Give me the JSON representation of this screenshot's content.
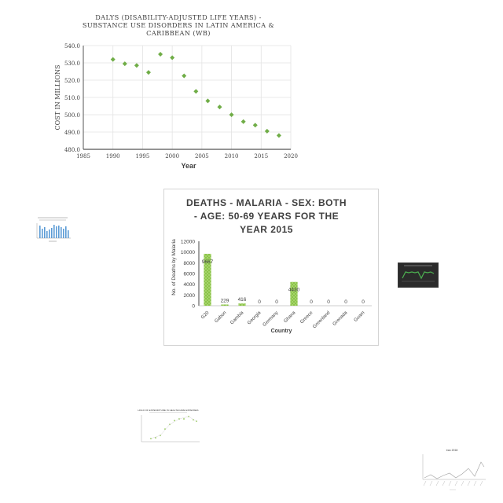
{
  "chart_data": [
    {
      "type": "scatter",
      "title": "DALYS (DISABILITY-ADJUSTED LIFE YEARS) - SUBSTANCE USE DISORDERS IN LATIN AMERICA & CARIBBEAN (WB)",
      "title_lines": [
        "DALYS (DISABILITY-ADJUSTED LIFE YEARS) -",
        "SUBSTANCE USE DISORDERS IN LATIN AMERICA &",
        "CARIBBEAN (WB)"
      ],
      "xlabel": "Year",
      "ylabel": "COST IN MILLIONS",
      "xlim": [
        1985,
        2020
      ],
      "ylim": [
        480,
        540
      ],
      "x_ticks": [
        "1985",
        "1990",
        "1995",
        "2000",
        "2005",
        "2010",
        "2015",
        "2020"
      ],
      "y_ticks": [
        "480.0",
        "490.0",
        "500.0",
        "510.0",
        "520.0",
        "530.0",
        "540.0"
      ],
      "marker_color": "#70ad47",
      "grid": true,
      "x": [
        1990,
        1992,
        1994,
        1996,
        1998,
        2000,
        2002,
        2004,
        2006,
        2008,
        2010,
        2012,
        2014,
        2016,
        2018
      ],
      "y": [
        532.0,
        529.5,
        528.5,
        524.5,
        535.0,
        533.0,
        522.5,
        513.5,
        508.0,
        504.5,
        500.0,
        496.0,
        494.0,
        490.5,
        488.0
      ]
    },
    {
      "type": "bar",
      "title": "DEATHS - MALARIA - SEX: BOTH - AGE: 50-69 YEARS FOR THE YEAR 2015",
      "title_lines": [
        "DEATHS - MALARIA - SEX: BOTH",
        "- AGE: 50-69 YEARS FOR THE",
        "YEAR 2015"
      ],
      "xlabel": "Country",
      "ylabel": "No. of Deaths by Malaria",
      "ylim": [
        0,
        12000
      ],
      "y_ticks": [
        "0",
        "2000",
        "4000",
        "6000",
        "8000",
        "10000",
        "12000"
      ],
      "bar_color": "#8bc34a",
      "categories": [
        "G20",
        "Gabon",
        "Gambia",
        "Georgia",
        "Germany",
        "Ghana",
        "Greece",
        "Greenland",
        "Grenada",
        "Guam"
      ],
      "values": [
        9667,
        229,
        416,
        0,
        0,
        4430,
        0,
        0,
        0,
        0
      ],
      "data_labels": [
        "9667",
        "229",
        "416",
        "0",
        "0",
        "4430",
        "0",
        "0",
        "0",
        "0"
      ]
    }
  ],
  "thumbnails": {
    "c_title": "HOLD OF EXPENDITURE IN HEALTHCARE EXPENSES",
    "d_title": "Iran 2018"
  }
}
